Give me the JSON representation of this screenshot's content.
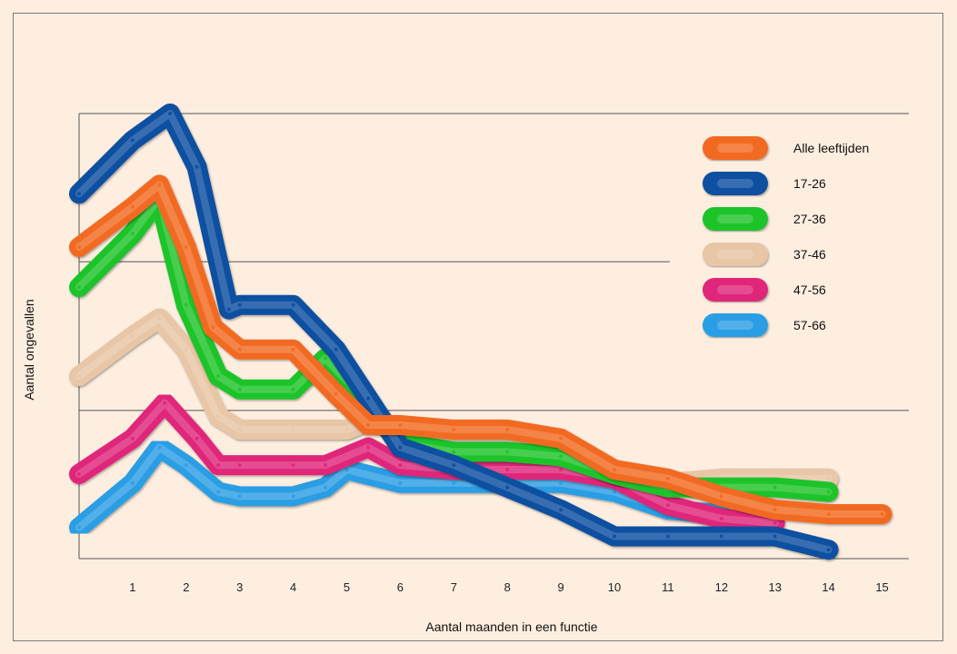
{
  "chart_data": {
    "type": "line",
    "title": "",
    "xlabel": "Aantal maanden in een functie",
    "ylabel": "Aantal ongevallen",
    "x": [
      1,
      2,
      3,
      4,
      5,
      6,
      7,
      8,
      9,
      10,
      11,
      12,
      13,
      14,
      15
    ],
    "xlim": [
      0,
      15.5
    ],
    "ylim": [
      0,
      100
    ],
    "grid": true,
    "legend": "top-right",
    "series": [
      {
        "name": "Alle leeftijden",
        "color": "#f26b22",
        "points": [
          [
            0,
            70
          ],
          [
            1,
            79
          ],
          [
            1.5,
            84
          ],
          [
            2,
            70
          ],
          [
            2.5,
            52
          ],
          [
            3,
            47
          ],
          [
            4,
            47
          ],
          [
            4.8,
            37
          ],
          [
            5.4,
            30
          ],
          [
            6,
            30
          ],
          [
            7,
            29
          ],
          [
            8,
            29
          ],
          [
            9,
            27
          ],
          [
            10,
            20
          ],
          [
            11,
            18
          ],
          [
            12,
            14
          ],
          [
            13,
            11
          ],
          [
            14,
            10
          ],
          [
            15,
            10
          ]
        ]
      },
      {
        "name": "17-26",
        "color": "#0b4fa0",
        "points": [
          [
            0,
            82
          ],
          [
            1,
            94
          ],
          [
            1.7,
            100
          ],
          [
            2.2,
            88
          ],
          [
            2.8,
            56
          ],
          [
            3,
            57
          ],
          [
            4,
            57
          ],
          [
            4.8,
            47
          ],
          [
            5.4,
            36
          ],
          [
            6,
            25
          ],
          [
            7,
            21
          ],
          [
            8,
            16
          ],
          [
            9,
            11
          ],
          [
            10,
            5
          ],
          [
            11,
            5
          ],
          [
            12,
            5
          ],
          [
            13,
            5
          ],
          [
            14,
            2
          ]
        ]
      },
      {
        "name": "27-36",
        "color": "#1ec42a",
        "points": [
          [
            0,
            61
          ],
          [
            1,
            73
          ],
          [
            1.5,
            81
          ],
          [
            2,
            57
          ],
          [
            2.6,
            41
          ],
          [
            3,
            38
          ],
          [
            4,
            38
          ],
          [
            4.6,
            45
          ],
          [
            5.4,
            35
          ],
          [
            6,
            26
          ],
          [
            7,
            24
          ],
          [
            8,
            24
          ],
          [
            9,
            23
          ],
          [
            10,
            19
          ],
          [
            11,
            16
          ],
          [
            12,
            16
          ],
          [
            13,
            16
          ],
          [
            14,
            15
          ]
        ]
      },
      {
        "name": "37-46",
        "color": "#e8c6a6",
        "points": [
          [
            0,
            41
          ],
          [
            1,
            50
          ],
          [
            1.5,
            54
          ],
          [
            2,
            47
          ],
          [
            2.6,
            32
          ],
          [
            3,
            29
          ],
          [
            4,
            29
          ],
          [
            5,
            29
          ],
          [
            5.4,
            31
          ],
          [
            6,
            29
          ],
          [
            7,
            27
          ],
          [
            8,
            27
          ],
          [
            9,
            24
          ],
          [
            10,
            19
          ],
          [
            11,
            17
          ],
          [
            12,
            18
          ],
          [
            13,
            18
          ],
          [
            14,
            18
          ]
        ]
      },
      {
        "name": "47-56",
        "color": "#e0277a",
        "points": [
          [
            0,
            19
          ],
          [
            1,
            27
          ],
          [
            1.6,
            35
          ],
          [
            2.2,
            27
          ],
          [
            2.6,
            21
          ],
          [
            3,
            21
          ],
          [
            4,
            21
          ],
          [
            4.6,
            21
          ],
          [
            5.4,
            25
          ],
          [
            6,
            21
          ],
          [
            7,
            20
          ],
          [
            8,
            20
          ],
          [
            9,
            20
          ],
          [
            10,
            18
          ],
          [
            11,
            12
          ],
          [
            12,
            9
          ],
          [
            13,
            8
          ]
        ]
      },
      {
        "name": "57-66",
        "color": "#2c9ee4",
        "points": [
          [
            0,
            7
          ],
          [
            1,
            17
          ],
          [
            1.5,
            25
          ],
          [
            2,
            21
          ],
          [
            2.6,
            15
          ],
          [
            3,
            14
          ],
          [
            4,
            14
          ],
          [
            4.6,
            16
          ],
          [
            5,
            20
          ],
          [
            6,
            17
          ],
          [
            7,
            17
          ],
          [
            8,
            17
          ],
          [
            9,
            17
          ],
          [
            10,
            15
          ],
          [
            11,
            11
          ],
          [
            12,
            10
          ]
        ]
      }
    ]
  }
}
